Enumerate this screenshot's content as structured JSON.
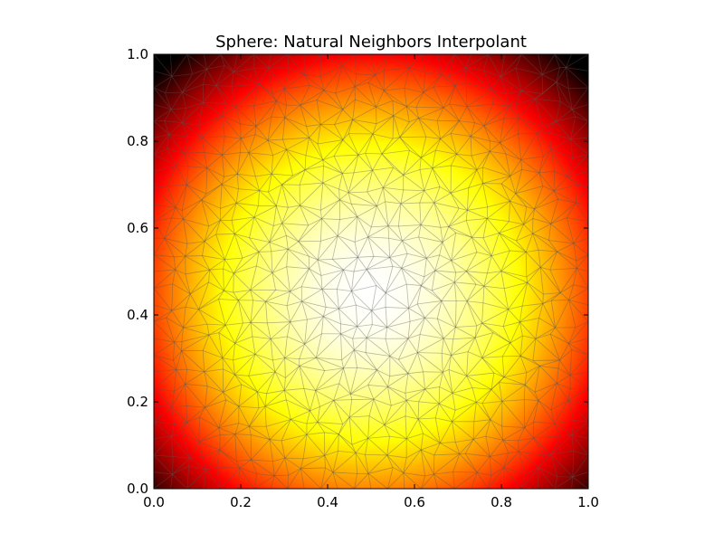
{
  "chart_data": {
    "type": "heatmap",
    "title": "Sphere: Natural Neighbors Interpolant",
    "xlabel": "",
    "ylabel": "",
    "xlim": [
      0.0,
      1.0
    ],
    "ylim": [
      0.0,
      1.0
    ],
    "x_ticks": [
      "0.0",
      "0.2",
      "0.4",
      "0.6",
      "0.8",
      "1.0"
    ],
    "y_ticks": [
      "0.0",
      "0.2",
      "0.4",
      "0.6",
      "0.8",
      "1.0"
    ],
    "colormap": "hot",
    "surface": "sphere",
    "center": [
      0.5,
      0.45
    ],
    "grid": false,
    "legend": "none",
    "overlay": "delaunay triangulation mesh",
    "colors": {
      "mesh_line": "#555555",
      "axis": "#000000",
      "background": "#ffffff"
    }
  }
}
